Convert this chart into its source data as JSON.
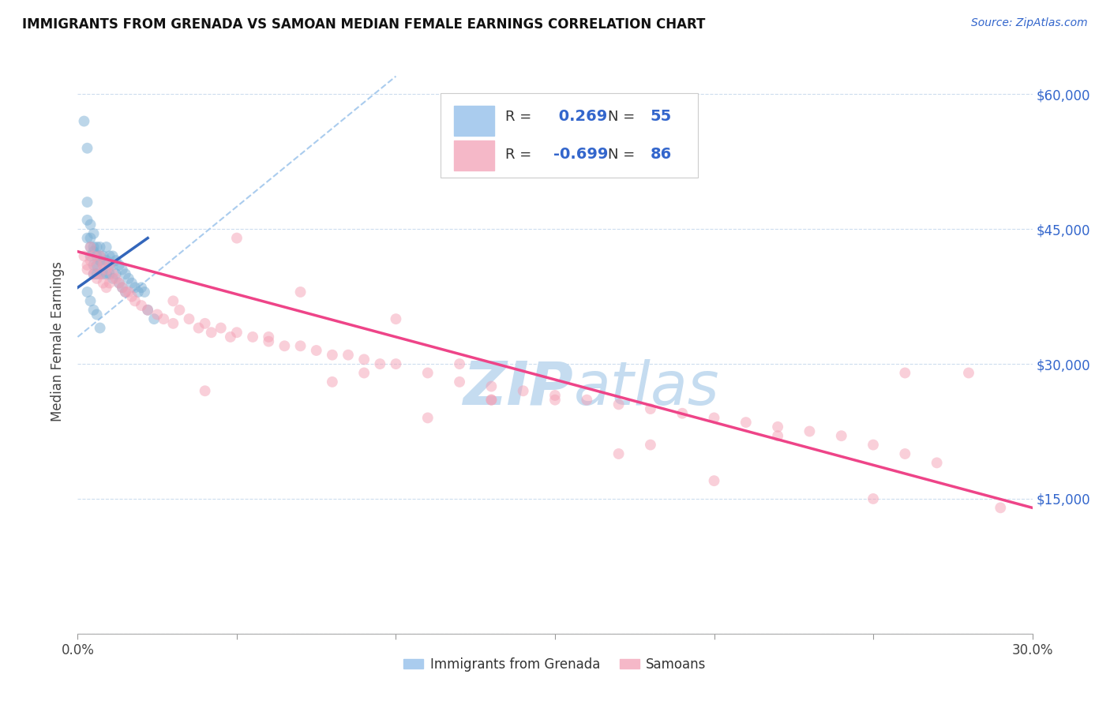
{
  "title": "IMMIGRANTS FROM GRENADA VS SAMOAN MEDIAN FEMALE EARNINGS CORRELATION CHART",
  "source": "Source: ZipAtlas.com",
  "xlim": [
    0.0,
    0.3
  ],
  "ylim": [
    0,
    65000
  ],
  "ylabel_ticks": [
    0,
    15000,
    30000,
    45000,
    60000
  ],
  "ylabel_labels": [
    "",
    "$15,000",
    "$30,000",
    "$45,000",
    "$60,000"
  ],
  "blue_color": "#7BAFD4",
  "pink_color": "#F4A0B5",
  "blue_line_color": "#3366BB",
  "pink_line_color": "#EE4488",
  "dashed_line_color": "#AACCEE",
  "marker_size": 100,
  "marker_alpha": 0.5,
  "blue_scatter_x": [
    0.002,
    0.003,
    0.003,
    0.003,
    0.003,
    0.004,
    0.004,
    0.004,
    0.004,
    0.005,
    0.005,
    0.005,
    0.005,
    0.005,
    0.006,
    0.006,
    0.006,
    0.006,
    0.007,
    0.007,
    0.007,
    0.007,
    0.008,
    0.008,
    0.008,
    0.009,
    0.009,
    0.009,
    0.01,
    0.01,
    0.01,
    0.011,
    0.011,
    0.011,
    0.012,
    0.012,
    0.013,
    0.013,
    0.014,
    0.014,
    0.015,
    0.015,
    0.016,
    0.017,
    0.018,
    0.019,
    0.02,
    0.021,
    0.022,
    0.024,
    0.003,
    0.004,
    0.005,
    0.006,
    0.007
  ],
  "blue_scatter_y": [
    57000,
    54000,
    48000,
    46000,
    44000,
    45500,
    44000,
    43000,
    42000,
    44500,
    43000,
    42500,
    41000,
    40000,
    43000,
    42000,
    41000,
    40000,
    43000,
    42000,
    41500,
    40000,
    42000,
    41000,
    40000,
    43000,
    41500,
    40000,
    42000,
    41000,
    40000,
    42000,
    41000,
    39500,
    41500,
    40000,
    41000,
    39000,
    40500,
    38500,
    40000,
    38000,
    39500,
    39000,
    38500,
    38000,
    38500,
    38000,
    36000,
    35000,
    38000,
    37000,
    36000,
    35500,
    34000
  ],
  "pink_scatter_x": [
    0.002,
    0.003,
    0.003,
    0.004,
    0.004,
    0.005,
    0.005,
    0.006,
    0.006,
    0.007,
    0.007,
    0.008,
    0.008,
    0.009,
    0.009,
    0.01,
    0.01,
    0.011,
    0.012,
    0.013,
    0.014,
    0.015,
    0.016,
    0.017,
    0.018,
    0.02,
    0.022,
    0.025,
    0.027,
    0.03,
    0.032,
    0.035,
    0.038,
    0.04,
    0.042,
    0.045,
    0.048,
    0.05,
    0.055,
    0.06,
    0.065,
    0.07,
    0.075,
    0.08,
    0.085,
    0.09,
    0.095,
    0.1,
    0.11,
    0.12,
    0.13,
    0.14,
    0.15,
    0.16,
    0.17,
    0.18,
    0.19,
    0.2,
    0.21,
    0.22,
    0.23,
    0.24,
    0.25,
    0.26,
    0.27,
    0.05,
    0.1,
    0.15,
    0.2,
    0.07,
    0.12,
    0.18,
    0.08,
    0.13,
    0.22,
    0.28,
    0.03,
    0.06,
    0.09,
    0.13,
    0.17,
    0.25,
    0.29,
    0.04,
    0.11,
    0.26
  ],
  "pink_scatter_y": [
    42000,
    41000,
    40500,
    43000,
    41500,
    42000,
    40000,
    41000,
    39500,
    42000,
    40000,
    41000,
    39000,
    40500,
    38500,
    41000,
    39000,
    40000,
    39500,
    39000,
    38500,
    38000,
    38000,
    37500,
    37000,
    36500,
    36000,
    35500,
    35000,
    34500,
    36000,
    35000,
    34000,
    34500,
    33500,
    34000,
    33000,
    33500,
    33000,
    32500,
    32000,
    32000,
    31500,
    31000,
    31000,
    30500,
    30000,
    30000,
    29000,
    28000,
    27500,
    27000,
    26500,
    26000,
    25500,
    25000,
    24500,
    24000,
    23500,
    23000,
    22500,
    22000,
    21000,
    20000,
    19000,
    44000,
    35000,
    26000,
    17000,
    38000,
    30000,
    21000,
    28000,
    26000,
    22000,
    29000,
    37000,
    33000,
    29000,
    26000,
    20000,
    15000,
    14000,
    27000,
    24000,
    29000
  ],
  "blue_trend_x": [
    0.0,
    0.022
  ],
  "blue_trend_y": [
    38500,
    44000
  ],
  "pink_trend_x": [
    0.0,
    0.3
  ],
  "pink_trend_y": [
    42500,
    14000
  ],
  "dashed_trend_x": [
    0.0,
    0.1
  ],
  "dashed_trend_y": [
    33000,
    62000
  ],
  "watermark_line1": "ZIP",
  "watermark_line2": "atlas",
  "watermark_color": "#C5DCF0",
  "background_color": "#FFFFFF",
  "legend_label_blue": "Immigrants from Grenada",
  "legend_label_pink": "Samoans",
  "legend_R_blue": " 0.269",
  "legend_R_pink": "-0.699",
  "legend_N_blue": "55",
  "legend_N_pink": "86"
}
